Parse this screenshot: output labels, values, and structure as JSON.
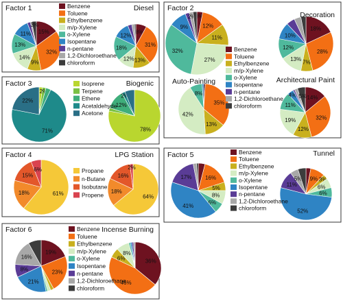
{
  "colors": {
    "Benzene": "#6e1220",
    "Toluene": "#f36f14",
    "Ethylbenzene": "#c9b01e",
    "m/p-Xylene": "#d4ecc3",
    "o-Xylene": "#4fb99c",
    "Isopentane": "#2f84c4",
    "n-pentane": "#5a3c96",
    "1,2-Dichloroethane": "#a8a8a8",
    "chloroform": "#3c3c3c",
    "Isoprene": "#b9d62f",
    "Terpene": "#7ac143",
    "Ethene": "#3fae7b",
    "Acetaldehyde": "#1e8a8a",
    "Acetone": "#2a6f86",
    "Propane": "#f5c838",
    "n-Butane": "#f28a2b",
    "Isobutane": "#e3572a",
    "Propene": "#d9434f"
  },
  "legends": {
    "voc": [
      "Benzene",
      "Toluene",
      "Ethylbenzene",
      "m/p-Xylene",
      "o-Xylene",
      "Isopentane",
      "n-pentane",
      "1,2-Dichloroethane",
      "chloroform"
    ],
    "biogenic": [
      "Isoprene",
      "Terpene",
      "Ethene",
      "Acetaldehyde",
      "Acetone"
    ],
    "lpg": [
      "Propane",
      "n-Butane",
      "Isobutane",
      "Propene"
    ]
  },
  "chart_data": [
    {
      "type": "pie",
      "title": "Factor 1",
      "slices": [
        {
          "name": "Benzene",
          "value": 15,
          "label": "15%"
        },
        {
          "name": "Toluene",
          "value": 32,
          "label": "32%"
        },
        {
          "name": "Ethylbenzene",
          "value": 9,
          "label": "9%"
        },
        {
          "name": "m/p-Xylene",
          "value": 14,
          "label": "14%"
        },
        {
          "name": "o-Xylene",
          "value": 13,
          "label": "13%"
        },
        {
          "name": "Isopentane",
          "value": 11,
          "label": "11%"
        },
        {
          "name": "n-pentane",
          "value": 2,
          "label": ""
        },
        {
          "name": "1,2-Dichloroethane",
          "value": 1,
          "label": ""
        },
        {
          "name": "chloroform",
          "value": 3,
          "label": "3%"
        }
      ]
    },
    {
      "type": "pie",
      "title": "Diesel",
      "slices": [
        {
          "name": "Benzene",
          "value": 8,
          "label": "8%"
        },
        {
          "name": "Toluene",
          "value": 31,
          "label": "31%"
        },
        {
          "name": "Ethylbenzene",
          "value": 13,
          "label": "13%"
        },
        {
          "name": "m/p-Xylene",
          "value": 12,
          "label": "12%"
        },
        {
          "name": "o-Xylene",
          "value": 18,
          "label": "18%"
        },
        {
          "name": "Isopentane",
          "value": 12,
          "label": "12%"
        },
        {
          "name": "n-pentane",
          "value": 3,
          "label": ""
        },
        {
          "name": "1,2-Dichloroethane",
          "value": 2,
          "label": ""
        },
        {
          "name": "chloroform",
          "value": 1,
          "label": ""
        }
      ]
    },
    {
      "type": "pie",
      "title": "Factor 2",
      "slices": [
        {
          "name": "Benzene",
          "value": 3,
          "label": "3%"
        },
        {
          "name": "Toluene",
          "value": 12,
          "label": "12%"
        },
        {
          "name": "Ethylbenzene",
          "value": 11,
          "label": "11%"
        },
        {
          "name": "m/p-Xylene",
          "value": 27,
          "label": "27%"
        },
        {
          "name": "o-Xylene",
          "value": 32,
          "label": "32%"
        },
        {
          "name": "Isopentane",
          "value": 9,
          "label": "9%"
        },
        {
          "name": "n-pentane",
          "value": 2,
          "label": ""
        },
        {
          "name": "1,2-Dichloroethane",
          "value": 2,
          "label": "2%"
        },
        {
          "name": "chloroform",
          "value": 2,
          "label": ""
        }
      ]
    },
    {
      "type": "pie",
      "title": "Decoration",
      "slices": [
        {
          "name": "Benzene",
          "value": 18,
          "label": "18%"
        },
        {
          "name": "Toluene",
          "value": 28,
          "label": "28%"
        },
        {
          "name": "Ethylbenzene",
          "value": 7,
          "label": "7%"
        },
        {
          "name": "m/p-Xylene",
          "value": 13,
          "label": "13%"
        },
        {
          "name": "o-Xylene",
          "value": 12,
          "label": "12%"
        },
        {
          "name": "Isopentane",
          "value": 10,
          "label": "10%"
        },
        {
          "name": "n-pentane",
          "value": 5,
          "label": ""
        },
        {
          "name": "1,2-Dichloroethane",
          "value": 4,
          "label": ""
        },
        {
          "name": "chloroform",
          "value": 3,
          "label": ""
        }
      ]
    },
    {
      "type": "pie",
      "title": "Factor 3",
      "slices": [
        {
          "name": "Isoprene",
          "value": 2,
          "label": ""
        },
        {
          "name": "Terpene",
          "value": 2,
          "label": "2%"
        },
        {
          "name": "Ethene",
          "value": 3,
          "label": ""
        },
        {
          "name": "Acetaldehyde",
          "value": 71,
          "label": "71%"
        },
        {
          "name": "Acetone",
          "value": 22,
          "label": "22%"
        }
      ]
    },
    {
      "type": "pie",
      "title": "Biogenic",
      "slices": [
        {
          "name": "Isoprene",
          "value": 78,
          "label": "78%"
        },
        {
          "name": "Terpene",
          "value": 2,
          "label": ""
        },
        {
          "name": "Ethene",
          "value": 12,
          "label": "12%"
        },
        {
          "name": "Acetaldehyde",
          "value": 2,
          "label": "2%"
        },
        {
          "name": "Acetone",
          "value": 6,
          "label": ""
        }
      ]
    },
    {
      "type": "pie",
      "title": "Auto-Painting",
      "slices": [
        {
          "name": "Benzene",
          "value": 1,
          "label": "1%"
        },
        {
          "name": "Toluene",
          "value": 35,
          "label": "35%"
        },
        {
          "name": "Ethylbenzene",
          "value": 13,
          "label": "13%"
        },
        {
          "name": "m/p-Xylene",
          "value": 42,
          "label": "42%"
        },
        {
          "name": "o-Xylene",
          "value": 8,
          "label": "8%"
        },
        {
          "name": "Isopentane",
          "value": 1,
          "label": ""
        }
      ]
    },
    {
      "type": "pie",
      "title": "Architectural Paint",
      "slices": [
        {
          "name": "Benzene",
          "value": 14,
          "label": "14%"
        },
        {
          "name": "Toluene",
          "value": 32,
          "label": "32%"
        },
        {
          "name": "Ethylbenzene",
          "value": 12,
          "label": "12%"
        },
        {
          "name": "m/p-Xylene",
          "value": 19,
          "label": "19%"
        },
        {
          "name": "o-Xylene",
          "value": 11,
          "label": "11%"
        },
        {
          "name": "Isopentane",
          "value": 4,
          "label": "4%"
        },
        {
          "name": "n-pentane",
          "value": 1,
          "label": ""
        },
        {
          "name": "1,2-Dichloroethane",
          "value": 2,
          "label": ""
        },
        {
          "name": "chloroform",
          "value": 5,
          "label": "5%"
        }
      ]
    },
    {
      "type": "pie",
      "title": "Factor 4",
      "slices": [
        {
          "name": "Propane",
          "value": 61,
          "label": "61%"
        },
        {
          "name": "n-Butane",
          "value": 18,
          "label": "18%"
        },
        {
          "name": "Isobutane",
          "value": 15,
          "label": "15%"
        },
        {
          "name": "Propene",
          "value": 6,
          "label": "6%"
        }
      ]
    },
    {
      "type": "pie",
      "title": "LPG Station",
      "slices": [
        {
          "name": "Propane",
          "value": 64,
          "label": "64%"
        },
        {
          "name": "n-Butane",
          "value": 18,
          "label": "18%"
        },
        {
          "name": "Isobutane",
          "value": 16,
          "label": "16%"
        },
        {
          "name": "Propene",
          "value": 2,
          "label": "2%"
        }
      ]
    },
    {
      "type": "pie",
      "title": "Factor 5",
      "slices": [
        {
          "name": "Benzene",
          "value": 4,
          "label": ""
        },
        {
          "name": "Toluene",
          "value": 16,
          "label": "16%"
        },
        {
          "name": "Ethylbenzene",
          "value": 5,
          "label": "5%"
        },
        {
          "name": "m/p-Xylene",
          "value": 8,
          "label": "8%"
        },
        {
          "name": "o-Xylene",
          "value": 6,
          "label": "6%"
        },
        {
          "name": "Isopentane",
          "value": 41,
          "label": "41%"
        },
        {
          "name": "n-pentane",
          "value": 17,
          "label": "17%"
        },
        {
          "name": "1,2-Dichloroethane",
          "value": 2,
          "label": ""
        },
        {
          "name": "chloroform",
          "value": 1,
          "label": ""
        }
      ]
    },
    {
      "type": "pie",
      "title": "Tunnel",
      "slices": [
        {
          "name": "Benzene",
          "value": 3,
          "label": ""
        },
        {
          "name": "Toluene",
          "value": 9,
          "label": "9%"
        },
        {
          "name": "Ethylbenzene",
          "value": 3,
          "label": "3%"
        },
        {
          "name": "m/p-Xylene",
          "value": 6,
          "label": "6%"
        },
        {
          "name": "o-Xylene",
          "value": 6,
          "label": "6%"
        },
        {
          "name": "Isopentane",
          "value": 52,
          "label": "52%"
        },
        {
          "name": "n-pentane",
          "value": 11,
          "label": "11%"
        },
        {
          "name": "1,2-Dichloroethane",
          "value": 5,
          "label": "5%"
        },
        {
          "name": "chloroform",
          "value": 5,
          "label": ""
        }
      ]
    },
    {
      "type": "pie",
      "title": "Factor 6",
      "slices": [
        {
          "name": "Benzene",
          "value": 19,
          "label": "19%"
        },
        {
          "name": "Toluene",
          "value": 23,
          "label": "23%"
        },
        {
          "name": "Ethylbenzene",
          "value": 2,
          "label": ""
        },
        {
          "name": "m/p-Xylene",
          "value": 2,
          "label": ""
        },
        {
          "name": "o-Xylene",
          "value": 1,
          "label": ""
        },
        {
          "name": "Isopentane",
          "value": 21,
          "label": "21%"
        },
        {
          "name": "n-pentane",
          "value": 8,
          "label": "8%"
        },
        {
          "name": "1,2-Dichloroethane",
          "value": 16,
          "label": "16%"
        },
        {
          "name": "chloroform",
          "value": 8,
          "label": ""
        }
      ]
    },
    {
      "type": "pie",
      "title": "Incense Burning",
      "slices": [
        {
          "name": "Benzene",
          "value": 36,
          "label": "36%"
        },
        {
          "name": "Toluene",
          "value": 46,
          "label": "46%"
        },
        {
          "name": "Ethylbenzene",
          "value": 6,
          "label": "6%"
        },
        {
          "name": "m/p-Xylene",
          "value": 8,
          "label": "8%"
        },
        {
          "name": "o-Xylene",
          "value": 1,
          "label": ""
        },
        {
          "name": "Isopentane",
          "value": 1,
          "label": ""
        },
        {
          "name": "n-pentane",
          "value": 1,
          "label": ""
        },
        {
          "name": "1,2-Dichloroethane",
          "value": 1,
          "label": ""
        }
      ]
    }
  ]
}
